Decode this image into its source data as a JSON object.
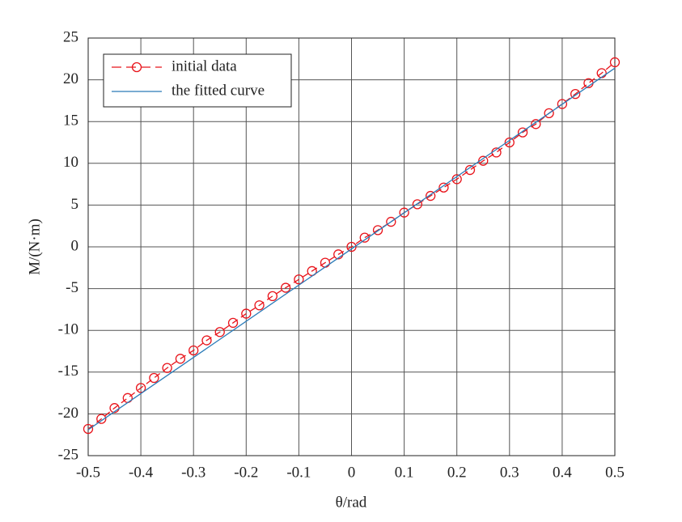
{
  "chart_data": {
    "type": "line",
    "xlabel": "θ/rad",
    "ylabel": "M/(N·m)",
    "xlim": [
      -0.5,
      0.5
    ],
    "xticks": [
      -0.5,
      -0.4,
      -0.3,
      -0.2,
      -0.1,
      0,
      0.1,
      0.2,
      0.3,
      0.4,
      0.5
    ],
    "ylim": [
      -25,
      25
    ],
    "yticks": [
      -25,
      -20,
      -15,
      -10,
      -5,
      0,
      5,
      10,
      15,
      20,
      25
    ],
    "grid": true,
    "legend": "upper left",
    "series": [
      {
        "name": "initial data",
        "color": "#e8141b",
        "marker": "circle",
        "linestyle": "dashed",
        "x": [
          -0.5,
          -0.475,
          -0.45,
          -0.425,
          -0.4,
          -0.375,
          -0.35,
          -0.325,
          -0.3,
          -0.275,
          -0.25,
          -0.225,
          -0.2,
          -0.175,
          -0.15,
          -0.125,
          -0.1,
          -0.075,
          -0.05,
          -0.025,
          0,
          0.025,
          0.05,
          0.075,
          0.1,
          0.125,
          0.15,
          0.175,
          0.2,
          0.225,
          0.25,
          0.275,
          0.3,
          0.325,
          0.35,
          0.375,
          0.4,
          0.425,
          0.45,
          0.475,
          0.5
        ],
        "values": [
          -21.8,
          -20.6,
          -19.3,
          -18.1,
          -16.9,
          -15.7,
          -14.5,
          -13.4,
          -12.4,
          -11.2,
          -10.2,
          -9.1,
          -8.0,
          -7.0,
          -5.9,
          -4.9,
          -3.9,
          -2.9,
          -1.9,
          -0.9,
          0,
          1.1,
          2.0,
          3.0,
          4.1,
          5.1,
          6.1,
          7.1,
          8.1,
          9.2,
          10.3,
          11.3,
          12.5,
          13.7,
          14.7,
          16.0,
          17.1,
          18.3,
          19.6,
          20.8,
          22.1
        ]
      },
      {
        "name": "the fitted curve",
        "color": "#2a7bb8",
        "marker": "none",
        "linestyle": "solid",
        "x": [
          -0.5,
          0.5
        ],
        "values": [
          -21.9,
          21.4
        ]
      }
    ]
  }
}
